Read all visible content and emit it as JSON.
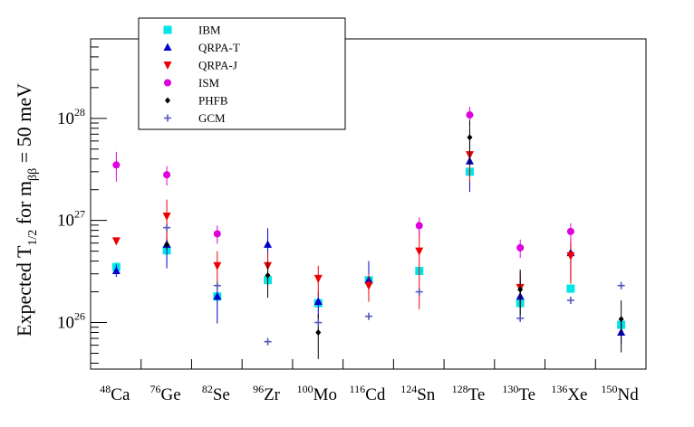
{
  "chart_data": {
    "type": "scatter",
    "title": "",
    "xlabel": "",
    "ylabel": {
      "prefix": "Expected T",
      "sub": "1/2",
      "middle": "  for m",
      "sub2": "ββ",
      "suffix": " = 50 meV"
    },
    "yscale": "log",
    "ylim": [
      3.5e+25,
      6e+28
    ],
    "y_ticks": [
      {
        "value": 1e+26,
        "base": "10",
        "exp": "26"
      },
      {
        "value": 1e+27,
        "base": "10",
        "exp": "27"
      },
      {
        "value": 1e+28,
        "base": "10",
        "exp": "28"
      }
    ],
    "categories": [
      {
        "mass": "48",
        "element": "Ca"
      },
      {
        "mass": "76",
        "element": "Ge"
      },
      {
        "mass": "82",
        "element": "Se"
      },
      {
        "mass": "96",
        "element": "Zr"
      },
      {
        "mass": "100",
        "element": "Mo"
      },
      {
        "mass": "116",
        "element": "Cd"
      },
      {
        "mass": "124",
        "element": "Sn"
      },
      {
        "mass": "128",
        "element": "Te"
      },
      {
        "mass": "130",
        "element": "Te"
      },
      {
        "mass": "136",
        "element": "Xe"
      },
      {
        "mass": "150",
        "element": "Nd"
      }
    ],
    "legend_position": "top-left",
    "series": [
      {
        "name": "IBM",
        "marker": "square",
        "color": "#00e5e5",
        "points": [
          {
            "cat": 0,
            "y": 3.5e+26,
            "lo": 3.1e+26,
            "hi": 3.9e+26
          },
          {
            "cat": 1,
            "y": 5.1e+26,
            "lo": 4.4e+26,
            "hi": 5.8e+26
          },
          {
            "cat": 2,
            "y": 1.8e+26,
            "lo": 1.6e+26,
            "hi": 2e+26
          },
          {
            "cat": 3,
            "y": 2.6e+26,
            "lo": 2.3e+26,
            "hi": 2.9e+26
          },
          {
            "cat": 4,
            "y": 1.55e+26,
            "lo": 1.4e+26,
            "hi": 1.7e+26
          },
          {
            "cat": 5,
            "y": 2.6e+26,
            "lo": 2.3e+26,
            "hi": 2.9e+26
          },
          {
            "cat": 6,
            "y": 3.2e+26,
            "lo": 2.9e+26,
            "hi": 3.5e+26
          },
          {
            "cat": 7,
            "y": 3e+27,
            "lo": 2.7e+27,
            "hi": 3.3e+27
          },
          {
            "cat": 8,
            "y": 1.55e+26,
            "lo": 1.4e+26,
            "hi": 1.7e+26
          },
          {
            "cat": 9,
            "y": 2.15e+26,
            "lo": 1.95e+26,
            "hi": 2.35e+26
          },
          {
            "cat": 10,
            "y": 9.5e+25,
            "lo": 8.5e+25,
            "hi": 1.05e+26
          }
        ]
      },
      {
        "name": "QRPA-T",
        "marker": "triangle-up",
        "color": "#0000cc",
        "points": [
          {
            "cat": 0,
            "y": 3.2e+26,
            "lo": 2.8e+26,
            "hi": 3.7e+26
          },
          {
            "cat": 1,
            "y": 5.8e+26,
            "lo": 3.4e+26,
            "hi": 8.5e+26
          },
          {
            "cat": 2,
            "y": 1.8e+26,
            "lo": 9.8e+25,
            "hi": 2.4e+26
          },
          {
            "cat": 3,
            "y": 5.8e+26,
            "lo": 3.6e+26,
            "hi": 8.4e+26
          },
          {
            "cat": 4,
            "y": 1.6e+26,
            "lo": 1.1e+26,
            "hi": 2e+26
          },
          {
            "cat": 5,
            "y": 2.6e+26,
            "lo": 1.8e+26,
            "hi": 4e+26
          },
          {
            "cat": 7,
            "y": 3.8e+27,
            "lo": 1.9e+27,
            "hi": 5.8e+27
          },
          {
            "cat": 8,
            "y": 1.8e+26,
            "lo": 1.1e+26,
            "hi": 2.7e+26
          },
          {
            "cat": 9,
            "y": 4.8e+26,
            "lo": 2.6e+26,
            "hi": 6.2e+26
          },
          {
            "cat": 10,
            "y": 8e+25,
            "lo": 6.2e+25,
            "hi": 1.05e+26
          }
        ]
      },
      {
        "name": "QRPA-J",
        "marker": "triangle-down",
        "color": "#ee0000",
        "points": [
          {
            "cat": 0,
            "y": 6.3e+26,
            "lo": 6e+26,
            "hi": 6.7e+26
          },
          {
            "cat": 1,
            "y": 1.1e+27,
            "lo": 6.2e+26,
            "hi": 1.6e+27
          },
          {
            "cat": 2,
            "y": 3.6e+26,
            "lo": 2.2e+26,
            "hi": 5e+26
          },
          {
            "cat": 3,
            "y": 3.6e+26,
            "lo": 2.3e+26,
            "hi": 4.8e+26
          },
          {
            "cat": 4,
            "y": 2.7e+26,
            "lo": 1.8e+26,
            "hi": 3.6e+26
          },
          {
            "cat": 5,
            "y": 2.3e+26,
            "lo": 1.6e+26,
            "hi": 3e+26
          },
          {
            "cat": 6,
            "y": 5e+26,
            "lo": 1.35e+26,
            "hi": 8e+26
          },
          {
            "cat": 7,
            "y": 4.4e+27,
            "lo": 2.4e+27,
            "hi": 7.5e+27
          },
          {
            "cat": 8,
            "y": 2.2e+26,
            "lo": 1.4e+26,
            "hi": 3.1e+26
          },
          {
            "cat": 9,
            "y": 4.5e+26,
            "lo": 2.4e+26,
            "hi": 6.4e+26
          }
        ]
      },
      {
        "name": "ISM",
        "marker": "circle",
        "color": "#dd00dd",
        "points": [
          {
            "cat": 0,
            "y": 3.5e+27,
            "lo": 2.4e+27,
            "hi": 4.7e+27
          },
          {
            "cat": 1,
            "y": 2.8e+27,
            "lo": 2.2e+27,
            "hi": 3.4e+27
          },
          {
            "cat": 2,
            "y": 7.4e+26,
            "lo": 5.9e+26,
            "hi": 8.9e+26
          },
          {
            "cat": 6,
            "y": 8.9e+26,
            "lo": 7.1e+26,
            "hi": 1.07e+27
          },
          {
            "cat": 7,
            "y": 1.08e+28,
            "lo": 8.6e+27,
            "hi": 1.3e+28
          },
          {
            "cat": 8,
            "y": 5.4e+26,
            "lo": 4.3e+26,
            "hi": 6.5e+26
          },
          {
            "cat": 9,
            "y": 7.8e+26,
            "lo": 6.2e+26,
            "hi": 9.4e+26
          }
        ]
      },
      {
        "name": "PHFB",
        "marker": "diamond",
        "color": "#000000",
        "points": [
          {
            "cat": 1,
            "y": 5.8e+26,
            "lo": 5.2e+26,
            "hi": 6.5e+26
          },
          {
            "cat": 3,
            "y": 2.9e+26,
            "lo": 1.75e+26,
            "hi": 3.9e+26
          },
          {
            "cat": 4,
            "y": 8e+25,
            "lo": 4.4e+25,
            "hi": 1.2e+26
          },
          {
            "cat": 7,
            "y": 6.5e+27,
            "lo": 3.5e+27,
            "hi": 9.5e+27
          },
          {
            "cat": 8,
            "y": 2.1e+26,
            "lo": 1.1e+26,
            "hi": 3.3e+26
          },
          {
            "cat": 10,
            "y": 1.08e+26,
            "lo": 5.1e+25,
            "hi": 1.65e+26
          }
        ]
      },
      {
        "name": "GCM",
        "marker": "plus",
        "color": "#5555bb",
        "points": [
          {
            "cat": 1,
            "y": 8.5e+26
          },
          {
            "cat": 2,
            "y": 2.3e+26
          },
          {
            "cat": 3,
            "y": 6.5e+25
          },
          {
            "cat": 4,
            "y": 1e+26
          },
          {
            "cat": 5,
            "y": 1.15e+26
          },
          {
            "cat": 6,
            "y": 2e+26
          },
          {
            "cat": 8,
            "y": 1.1e+26
          },
          {
            "cat": 9,
            "y": 1.65e+26
          },
          {
            "cat": 10,
            "y": 2.3e+26
          }
        ]
      }
    ]
  }
}
